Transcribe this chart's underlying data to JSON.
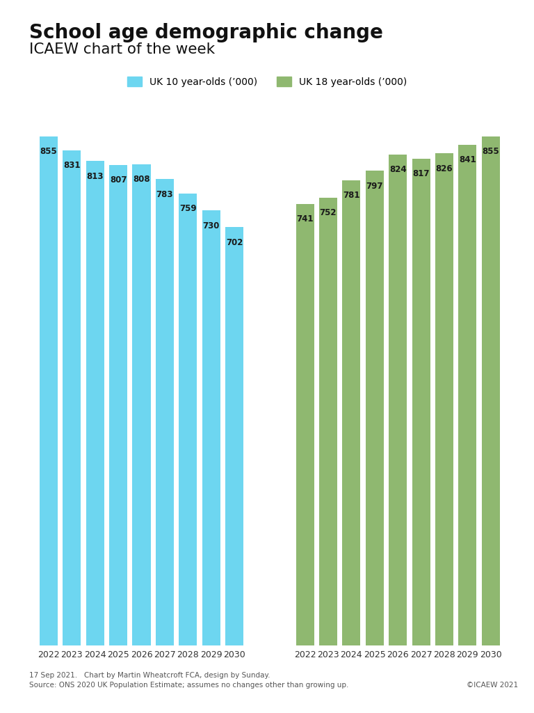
{
  "title": "School age demographic change",
  "subtitle": "ICAEW chart of the week",
  "years": [
    2022,
    2023,
    2024,
    2025,
    2026,
    2027,
    2028,
    2029,
    2030
  ],
  "ten_year_olds": [
    855,
    831,
    813,
    807,
    808,
    783,
    759,
    730,
    702
  ],
  "eighteen_year_olds": [
    741,
    752,
    781,
    797,
    824,
    817,
    826,
    841,
    855
  ],
  "color_10": "#6DD6F0",
  "color_18": "#8FB870",
  "legend_label_10": "UK 10 year-olds (’000)",
  "legend_label_18": "UK 18 year-olds (’000)",
  "footer_line1": "17 Sep 2021.   Chart by Martin Wheatcroft FCA, design by Sunday.",
  "footer_line2": "Source: ONS 2020 UK Population Estimate; assumes no changes other than growing up.",
  "footer_copyright": "©ICAEW 2021",
  "background_color": "#ffffff",
  "label_color": "#1a1a1a",
  "ylim": [
    0,
    940
  ]
}
